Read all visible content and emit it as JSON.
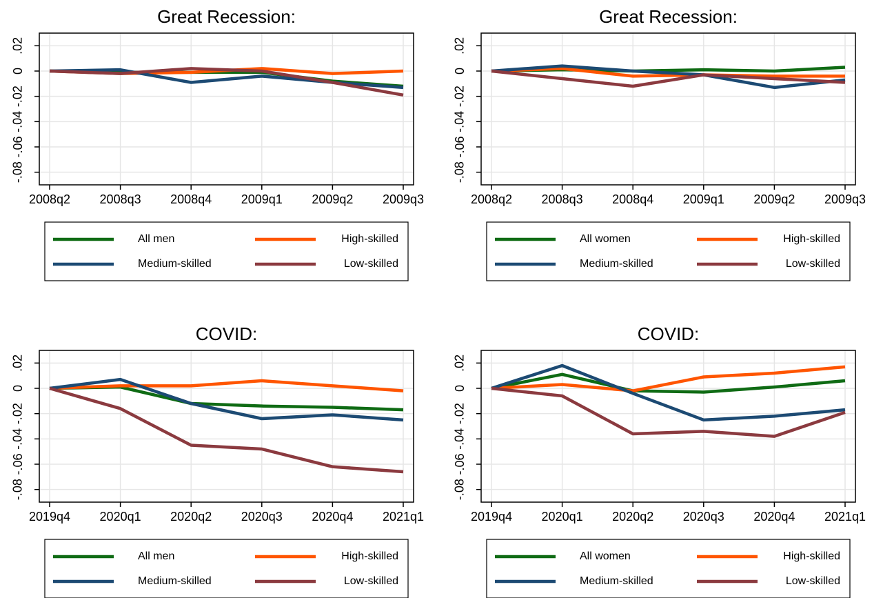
{
  "chart_data": [
    {
      "type": "line",
      "title": "Great Recession:",
      "categories": [
        "2008q2",
        "2008q3",
        "2008q4",
        "2009q1",
        "2009q2",
        "2009q3"
      ],
      "series": [
        {
          "name": "All men",
          "color": "#0f6b14",
          "values": [
            0,
            -0.001,
            -0.001,
            -0.001,
            -0.008,
            -0.012
          ]
        },
        {
          "name": "High-skilled",
          "color": "#ff5500",
          "values": [
            0,
            -0.002,
            -0.001,
            0.002,
            -0.002,
            0.0
          ]
        },
        {
          "name": "Medium-skilled",
          "color": "#1c4a73",
          "values": [
            0,
            0.001,
            -0.009,
            -0.004,
            -0.009,
            -0.013
          ]
        },
        {
          "name": "Low-skilled",
          "color": "#8b3a3f",
          "values": [
            0,
            -0.002,
            0.002,
            0.0,
            -0.009,
            -0.019
          ]
        }
      ],
      "ylim": [
        -0.09,
        0.03
      ],
      "yticks": [
        {
          "value": -0.08,
          "label": "-.08"
        },
        {
          "value": -0.06,
          "label": "-.06"
        },
        {
          "value": -0.04,
          "label": "-.04"
        },
        {
          "value": -0.02,
          "label": "-.02"
        },
        0,
        {
          "value": 0.02,
          "label": ".02"
        }
      ],
      "grid": true
    },
    {
      "type": "line",
      "title": "Great Recession:",
      "categories": [
        "2008q2",
        "2008q3",
        "2008q4",
        "2009q1",
        "2009q2",
        "2009q3"
      ],
      "series": [
        {
          "name": "All women",
          "color": "#0f6b14",
          "values": [
            0,
            0.001,
            0.0,
            0.001,
            0.0,
            0.003
          ]
        },
        {
          "name": "High-skilled",
          "color": "#ff5500",
          "values": [
            0,
            0.002,
            -0.004,
            -0.003,
            -0.004,
            -0.004
          ]
        },
        {
          "name": "Medium-skilled",
          "color": "#1c4a73",
          "values": [
            0,
            0.004,
            0.0,
            -0.003,
            -0.013,
            -0.007
          ]
        },
        {
          "name": "Low-skilled",
          "color": "#8b3a3f",
          "values": [
            0,
            -0.006,
            -0.012,
            -0.003,
            -0.006,
            -0.009
          ]
        }
      ],
      "ylim": [
        -0.09,
        0.03
      ],
      "yticks": [
        {
          "value": -0.08,
          "label": "-.08"
        },
        {
          "value": -0.06,
          "label": "-.06"
        },
        {
          "value": -0.04,
          "label": "-.04"
        },
        {
          "value": -0.02,
          "label": "-.02"
        },
        0,
        {
          "value": 0.02,
          "label": ".02"
        }
      ],
      "grid": true
    },
    {
      "type": "line",
      "title": "COVID:",
      "categories": [
        "2019q4",
        "2020q1",
        "2020q2",
        "2020q3",
        "2020q4",
        "2021q1"
      ],
      "series": [
        {
          "name": "All men",
          "color": "#0f6b14",
          "values": [
            0,
            0.001,
            -0.012,
            -0.014,
            -0.015,
            -0.017
          ]
        },
        {
          "name": "High-skilled",
          "color": "#ff5500",
          "values": [
            0,
            0.002,
            0.002,
            0.006,
            0.002,
            -0.002
          ]
        },
        {
          "name": "Medium-skilled",
          "color": "#1c4a73",
          "values": [
            0,
            0.007,
            -0.012,
            -0.024,
            -0.021,
            -0.025
          ]
        },
        {
          "name": "Low-skilled",
          "color": "#8b3a3f",
          "values": [
            0,
            -0.016,
            -0.045,
            -0.048,
            -0.062,
            -0.066
          ]
        }
      ],
      "ylim": [
        -0.09,
        0.03
      ],
      "yticks": [
        {
          "value": -0.08,
          "label": "-.08"
        },
        {
          "value": -0.06,
          "label": "-.06"
        },
        {
          "value": -0.04,
          "label": "-.04"
        },
        {
          "value": -0.02,
          "label": "-.02"
        },
        0,
        {
          "value": 0.02,
          "label": ".02"
        }
      ],
      "grid": true
    },
    {
      "type": "line",
      "title": "COVID:",
      "categories": [
        "2019q4",
        "2020q1",
        "2020q2",
        "2020q3",
        "2020q4",
        "2021q1"
      ],
      "series": [
        {
          "name": "All women",
          "color": "#0f6b14",
          "values": [
            0,
            0.011,
            -0.002,
            -0.003,
            0.001,
            0.006
          ]
        },
        {
          "name": "High-skilled",
          "color": "#ff5500",
          "values": [
            0,
            0.003,
            -0.002,
            0.009,
            0.012,
            0.017
          ]
        },
        {
          "name": "Medium-skilled",
          "color": "#1c4a73",
          "values": [
            0,
            0.018,
            -0.004,
            -0.025,
            -0.022,
            -0.017
          ]
        },
        {
          "name": "Low-skilled",
          "color": "#8b3a3f",
          "values": [
            0,
            -0.006,
            -0.036,
            -0.034,
            -0.038,
            -0.019
          ]
        }
      ],
      "ylim": [
        -0.09,
        0.03
      ],
      "yticks": [
        {
          "value": -0.08,
          "label": "-.08"
        },
        {
          "value": -0.06,
          "label": "-.06"
        },
        {
          "value": -0.04,
          "label": "-.04"
        },
        {
          "value": -0.02,
          "label": "-.02"
        },
        0,
        {
          "value": 0.02,
          "label": ".02"
        }
      ],
      "grid": true
    }
  ]
}
